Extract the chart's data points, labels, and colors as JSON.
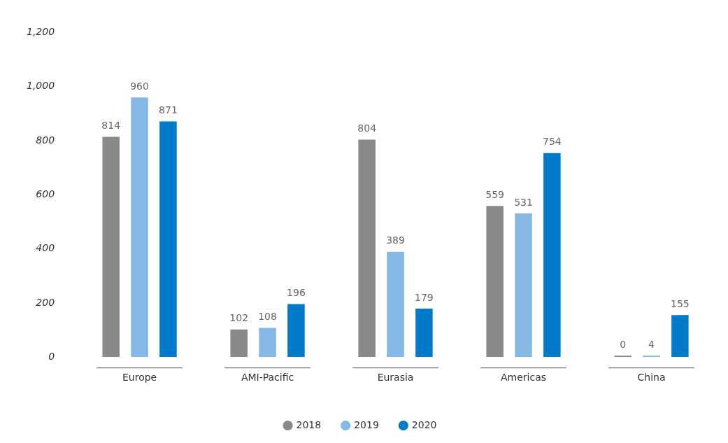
{
  "chart_data": {
    "type": "bar",
    "categories": [
      "Europe",
      "AMI-Pacific",
      "Eurasia",
      "Americas",
      "China"
    ],
    "series": [
      {
        "name": "2018",
        "color": "#898989",
        "values": [
          814,
          102,
          804,
          559,
          0
        ]
      },
      {
        "name": "2019",
        "color": "#86b8e5",
        "values": [
          960,
          108,
          389,
          531,
          4
        ]
      },
      {
        "name": "2020",
        "color": "#007ac9",
        "values": [
          871,
          196,
          179,
          754,
          155
        ]
      }
    ],
    "ylim": [
      0,
      1200
    ],
    "yticks": [
      {
        "value": 0,
        "label": "0"
      },
      {
        "value": 200,
        "label": "200"
      },
      {
        "value": 400,
        "label": "400"
      },
      {
        "value": 600,
        "label": "600"
      },
      {
        "value": 800,
        "label": "800"
      },
      {
        "value": 1000,
        "label": "1,000"
      },
      {
        "value": 1200,
        "label": "1,200"
      }
    ],
    "grid": false,
    "legend": "bottom",
    "data_labels": true
  }
}
